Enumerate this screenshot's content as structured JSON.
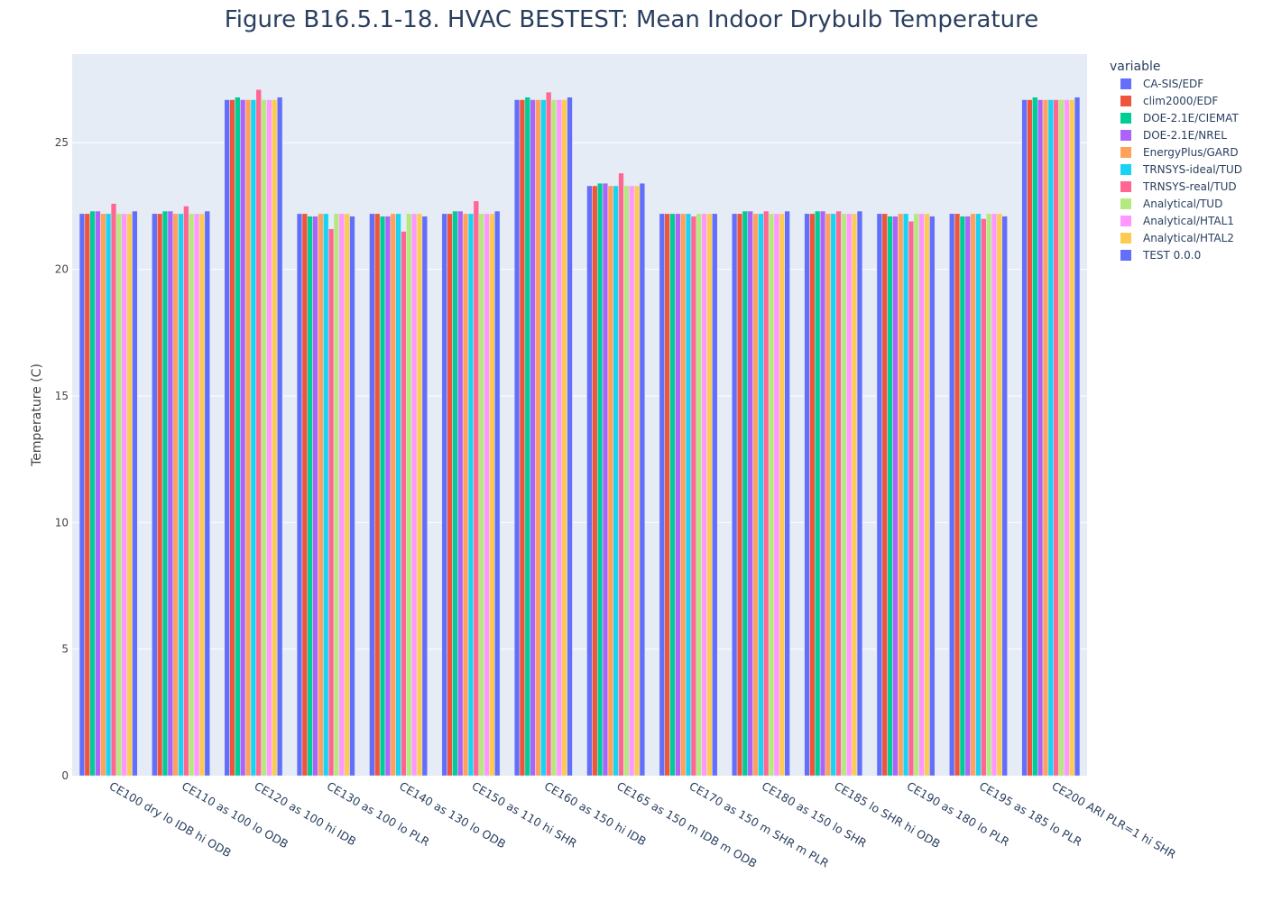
{
  "chart_data": {
    "type": "bar",
    "title": "Figure B16.5.1-18. HVAC BESTEST: Mean Indoor Drybulb Temperature",
    "xlabel": "",
    "ylabel": "Temperature (C)",
    "ylim": [
      0,
      28.5
    ],
    "yticks": [
      0,
      5,
      10,
      15,
      20,
      25
    ],
    "grid": true,
    "legend_title": "variable",
    "legend_position": "right",
    "categories": [
      "CE100 dry lo IDB hi ODB",
      "CE110 as 100 lo ODB",
      "CE120 as 100 hi IDB",
      "CE130 as 100 lo PLR",
      "CE140 as 130 lo ODB",
      "CE150 as 110 hi SHR",
      "CE160 as 150 hi IDB",
      "CE165 as 150 m IDB m ODB",
      "CE170 as 150 m SHR m PLR",
      "CE180 as 150 lo SHR",
      "CE185 lo SHR hi ODB",
      "CE190 as 180 lo PLR",
      "CE195 as 185 lo PLR",
      "CE200 ARI  PLR=1 hi SHR"
    ],
    "series": [
      {
        "name": "CA-SIS/EDF",
        "color": "#636efa",
        "values": [
          22.2,
          22.2,
          26.7,
          22.2,
          22.2,
          22.2,
          26.7,
          23.3,
          22.2,
          22.2,
          22.2,
          22.2,
          22.2,
          26.7
        ]
      },
      {
        "name": "clim2000/EDF",
        "color": "#ef553b",
        "values": [
          22.2,
          22.2,
          26.7,
          22.2,
          22.2,
          22.2,
          26.7,
          23.3,
          22.2,
          22.2,
          22.2,
          22.2,
          22.2,
          26.7
        ]
      },
      {
        "name": "DOE-2.1E/CIEMAT",
        "color": "#00cc96",
        "values": [
          22.3,
          22.3,
          26.8,
          22.1,
          22.1,
          22.3,
          26.8,
          23.4,
          22.2,
          22.3,
          22.3,
          22.1,
          22.1,
          26.8
        ]
      },
      {
        "name": "DOE-2.1E/NREL",
        "color": "#ab63fa",
        "values": [
          22.3,
          22.3,
          26.7,
          22.1,
          22.1,
          22.3,
          26.7,
          23.4,
          22.2,
          22.3,
          22.3,
          22.1,
          22.1,
          26.7
        ]
      },
      {
        "name": "EnergyPlus/GARD",
        "color": "#ffa15a",
        "values": [
          22.2,
          22.2,
          26.7,
          22.2,
          22.2,
          22.2,
          26.7,
          23.3,
          22.2,
          22.2,
          22.2,
          22.2,
          22.2,
          26.7
        ]
      },
      {
        "name": "TRNSYS-ideal/TUD",
        "color": "#19d3f3",
        "values": [
          22.2,
          22.2,
          26.7,
          22.2,
          22.2,
          22.2,
          26.7,
          23.3,
          22.2,
          22.2,
          22.2,
          22.2,
          22.2,
          26.7
        ]
      },
      {
        "name": "TRNSYS-real/TUD",
        "color": "#ff6692",
        "values": [
          22.6,
          22.5,
          27.1,
          21.6,
          21.5,
          22.7,
          27.0,
          23.8,
          22.1,
          22.3,
          22.3,
          21.9,
          22.0,
          26.7
        ]
      },
      {
        "name": "Analytical/TUD",
        "color": "#b6e880",
        "values": [
          22.2,
          22.2,
          26.7,
          22.2,
          22.2,
          22.2,
          26.7,
          23.3,
          22.2,
          22.2,
          22.2,
          22.2,
          22.2,
          26.7
        ]
      },
      {
        "name": "Analytical/HTAL1",
        "color": "#ff97ff",
        "values": [
          22.2,
          22.2,
          26.7,
          22.2,
          22.2,
          22.2,
          26.7,
          23.3,
          22.2,
          22.2,
          22.2,
          22.2,
          22.2,
          26.7
        ]
      },
      {
        "name": "Analytical/HTAL2",
        "color": "#fecb52",
        "values": [
          22.2,
          22.2,
          26.7,
          22.2,
          22.2,
          22.2,
          26.7,
          23.3,
          22.2,
          22.2,
          22.2,
          22.2,
          22.2,
          26.7
        ]
      },
      {
        "name": "TEST 0.0.0",
        "color": "#636efa",
        "values": [
          22.3,
          22.3,
          26.8,
          22.1,
          22.1,
          22.3,
          26.8,
          23.4,
          22.2,
          22.3,
          22.3,
          22.1,
          22.1,
          26.8
        ]
      }
    ]
  }
}
